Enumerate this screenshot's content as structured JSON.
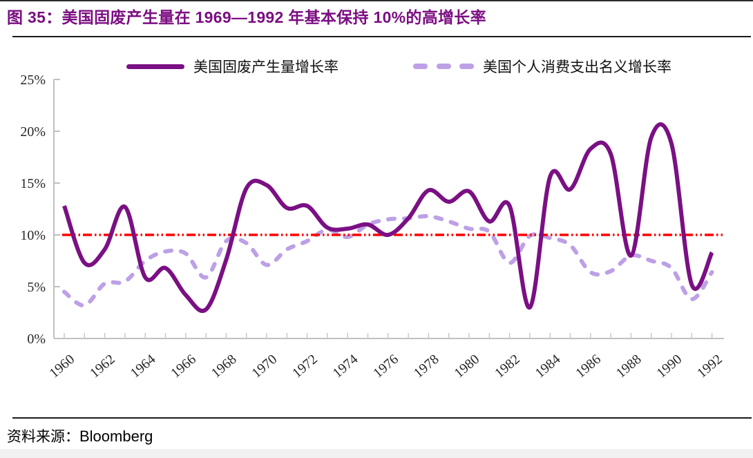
{
  "figure": {
    "title": "图 35：美国固废产生量在 1969—1992 年基本保持 10%的高增长率",
    "source_label": "资料来源：",
    "source_value": "Bloomberg"
  },
  "chart_data": {
    "type": "line",
    "unit": "percent",
    "title": "",
    "xlabel": "",
    "ylabel": "",
    "ylim": [
      0,
      25
    ],
    "grid": false,
    "legend_position": "top",
    "x": [
      1960,
      1961,
      1962,
      1963,
      1964,
      1965,
      1966,
      1967,
      1968,
      1969,
      1970,
      1971,
      1972,
      1973,
      1974,
      1975,
      1976,
      1977,
      1978,
      1979,
      1980,
      1981,
      1982,
      1983,
      1984,
      1985,
      1986,
      1987,
      1988,
      1989,
      1990,
      1991,
      1992
    ],
    "x_tick_labels": [
      "1960",
      "1962",
      "1964",
      "1966",
      "1968",
      "1970",
      "1972",
      "1974",
      "1976",
      "1978",
      "1980",
      "1982",
      "1984",
      "1986",
      "1988",
      "1990",
      "1992"
    ],
    "y_ticks": [
      "0%",
      "5%",
      "10%",
      "15%",
      "20%",
      "25%"
    ],
    "series": [
      {
        "slug": "waste-growth",
        "name": "美国固废产生量增长率",
        "line_style": "solid",
        "color": "#7A1083",
        "values": [
          12.8,
          7.3,
          8.6,
          12.7,
          5.9,
          6.8,
          4.2,
          2.8,
          7.6,
          14.5,
          14.8,
          12.6,
          12.8,
          10.7,
          10.6,
          11.0,
          10.0,
          11.6,
          14.3,
          13.2,
          14.2,
          11.3,
          12.8,
          3.0,
          15.6,
          14.4,
          18.3,
          17.8,
          8.0,
          19.4,
          18.8,
          5.2,
          8.3
        ]
      },
      {
        "slug": "pce-growth",
        "name": "美国个人消费支出名义增长率",
        "line_style": "dashed",
        "color": "#BDA0E6",
        "values": [
          4.5,
          3.2,
          5.3,
          5.5,
          7.5,
          8.4,
          8.2,
          5.9,
          9.4,
          9.2,
          7.1,
          8.6,
          9.4,
          10.5,
          9.8,
          11.0,
          11.5,
          11.6,
          11.8,
          11.3,
          10.6,
          10.3,
          7.3,
          9.9,
          9.7,
          9.0,
          6.4,
          6.5,
          8.0,
          7.5,
          6.8,
          3.8,
          6.4
        ]
      }
    ],
    "reference_line": {
      "value": 10,
      "color": "#FF0000",
      "style": "dash-dot-dot"
    }
  }
}
